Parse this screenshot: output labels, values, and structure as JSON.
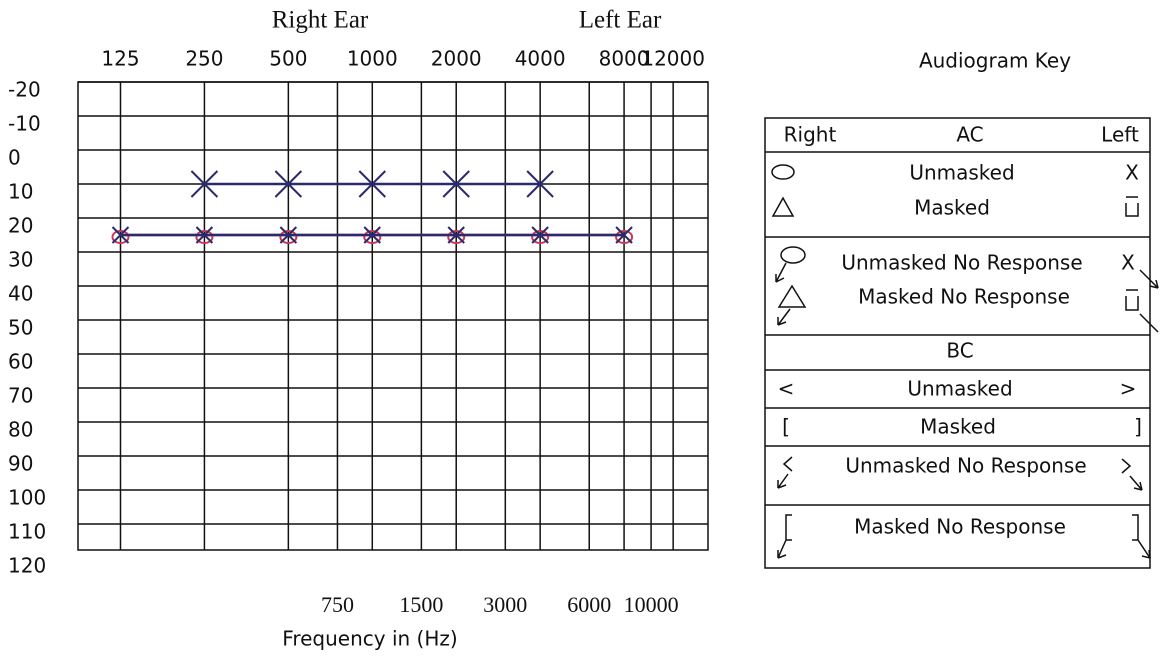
{
  "chart_data": {
    "type": "audiogram",
    "titles": [
      "Right Ear",
      "Left Ear"
    ],
    "x_label": "Frequency in (Hz)",
    "log_x": true,
    "xlim": [
      88,
      16000
    ],
    "xticks": [
      125,
      250,
      500,
      1000,
      2000,
      4000,
      8000,
      12000
    ],
    "x2ticks": [
      750,
      1500,
      3000,
      6000,
      10000
    ],
    "ylim": [
      -20,
      120
    ],
    "yticks": [
      -20,
      -10,
      0,
      10,
      20,
      30,
      40,
      50,
      60,
      70,
      80,
      90,
      100,
      110,
      120
    ],
    "grid": true,
    "series": [
      {
        "marker": "x",
        "color": "#2b2a6b",
        "line": true,
        "x": [
          250,
          500,
          1000,
          2000,
          4000
        ],
        "values": [
          10,
          10,
          10,
          10,
          10
        ]
      },
      {
        "marker": "o",
        "color": "#c8385a",
        "line": true,
        "x": [
          125,
          250,
          500,
          1000,
          2000,
          4000,
          8000
        ],
        "values": [
          25,
          25,
          25,
          25,
          25,
          25,
          25
        ]
      },
      {
        "marker": "x",
        "color": "#2b2a6b",
        "line": true,
        "x": [
          125,
          250,
          500,
          1000,
          2000,
          4000,
          8000
        ],
        "values": [
          25,
          25,
          25,
          25,
          25,
          25,
          25
        ]
      }
    ]
  },
  "key": {
    "title": "Audiogram Key",
    "header": [
      "Right",
      "AC",
      "Left"
    ],
    "ac_rows": [
      {
        "label": "Unmasked",
        "left": "X"
      },
      {
        "label": "Masked"
      },
      {
        "label": "Unmasked No Response",
        "left": "X"
      },
      {
        "label": "Masked No Response"
      }
    ],
    "bc_header": "BC",
    "bc_rows": [
      {
        "right": "<",
        "label": "Unmasked",
        "left": ">"
      },
      {
        "right": "[",
        "label": "Masked",
        "left": "]"
      },
      {
        "label": "Unmasked No Response"
      },
      {
        "label": "Masked No Response"
      }
    ]
  }
}
